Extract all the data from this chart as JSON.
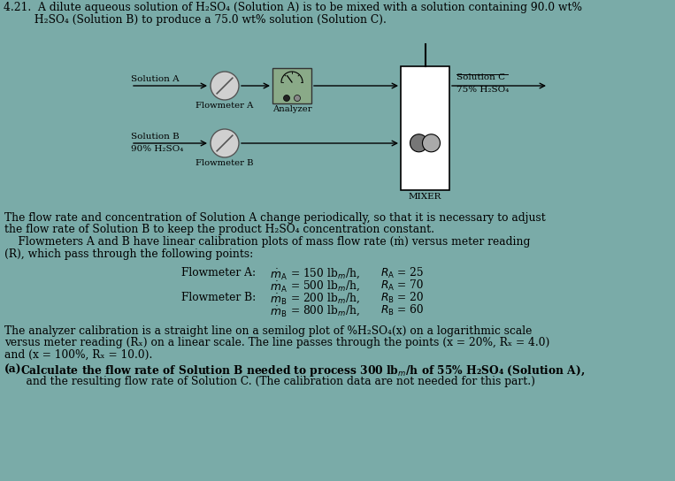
{
  "bg_color": "#7aaba8",
  "title_line1": "4.21.  A dilute aqueous solution of H₂SO₄ (Solution A) is to be mixed with a solution containing 90.0 wt%",
  "title_line2": "         H₂SO₄ (Solution B) to produce a 75.0 wt% solution (Solution C).",
  "diagram": {
    "sol_a_label": "Solution A",
    "sol_b_label": "Solution B",
    "sol_b_sub": "90% H₂SO₄",
    "flowmeter_a_label": "Flowmeter A",
    "flowmeter_b_label": "Flowmeter B",
    "analyzer_label": "Analyzer",
    "mixer_label": "MIXER",
    "sol_c_label": "Solution C",
    "sol_c_sub": "75% H₂SO₄"
  },
  "text_line1": "The flow rate and concentration of Solution A change periodically, so that it is necessary to adjust",
  "text_line2": "the flow rate of Solution B to keep the product H₂SO₄ concentration constant.",
  "text_line3": "    Flowmeters A and B have linear calibration plots of mass flow rate (ṁ) versus meter reading",
  "text_line4": "(R), which pass through the following points:",
  "fm_a_label": "Flowmeter A:",
  "fm_b_label": "Flowmeter B:",
  "fm_a1_vals": "= 150 lbₘ/h,",
  "fm_a1_r": "= 25",
  "fm_a2_vals": "= 500 lbₘ/h,",
  "fm_a2_r": "= 70",
  "fm_b1_vals": "= 200 lbₘ/h,",
  "fm_b1_r": "= 20",
  "fm_b2_vals": "= 800 lbₘ/h,",
  "fm_b2_r": "= 60",
  "analyzer_line1": "The analyzer calibration is a straight line on a semilog plot of %H₂SO₄(x) on a logarithmic scale",
  "analyzer_line2": "versus meter reading (Rₓ) on a linear scale. The line passes through the points (x = 20%, Rₓ = 4.0)",
  "analyzer_line3": "and (x = 100%, Rₓ = 10.0).",
  "part_a_bold": "(a)",
  "part_a_line1": " Calculate the flow rate of Solution B needed to process 300 lbₘ/h of 55% H₂SO₄ (Solution A),",
  "part_a_line2": "    and the resulting flow rate of Solution C. (The calibration data are not needed for this part.)"
}
